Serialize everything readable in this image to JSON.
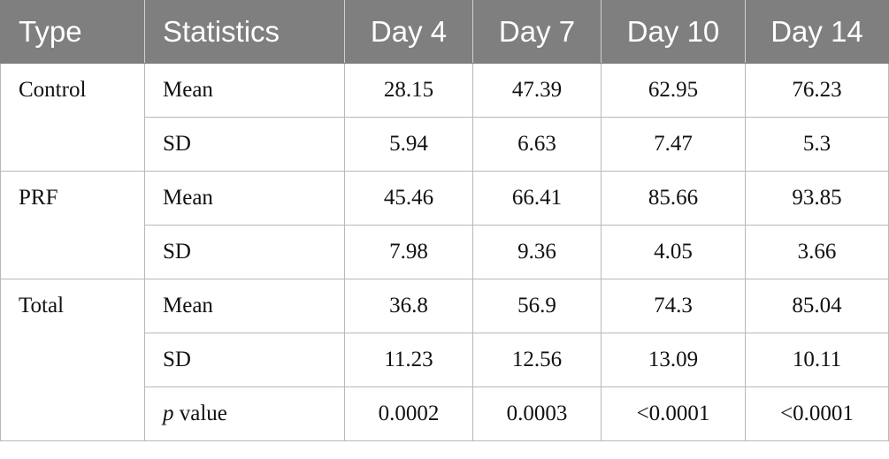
{
  "table": {
    "headers": [
      "Type",
      "Statistics",
      "Day 4",
      "Day 7",
      "Day 10",
      "Day 14"
    ],
    "groups": [
      {
        "type": "Control",
        "rows": [
          {
            "stat": "Mean",
            "values": [
              "28.15",
              "47.39",
              "62.95",
              "76.23"
            ]
          },
          {
            "stat": "SD",
            "values": [
              "5.94",
              "6.63",
              "7.47",
              "5.3"
            ]
          }
        ]
      },
      {
        "type": "PRF",
        "rows": [
          {
            "stat": "Mean",
            "values": [
              "45.46",
              "66.41",
              "85.66",
              "93.85"
            ]
          },
          {
            "stat": "SD",
            "values": [
              "7.98",
              "9.36",
              "4.05",
              "3.66"
            ]
          }
        ]
      },
      {
        "type": "Total",
        "rows": [
          {
            "stat": "Mean",
            "values": [
              "36.8",
              "56.9",
              "74.3",
              "85.04"
            ]
          },
          {
            "stat": "SD",
            "values": [
              "11.23",
              "12.56",
              "13.09",
              "10.11"
            ]
          }
        ]
      }
    ],
    "pvalue_row": {
      "stat_italic": "p",
      "stat_rest": " value",
      "values": [
        "0.0002",
        "0.0003",
        "<0.0001",
        "<0.0001"
      ]
    }
  }
}
